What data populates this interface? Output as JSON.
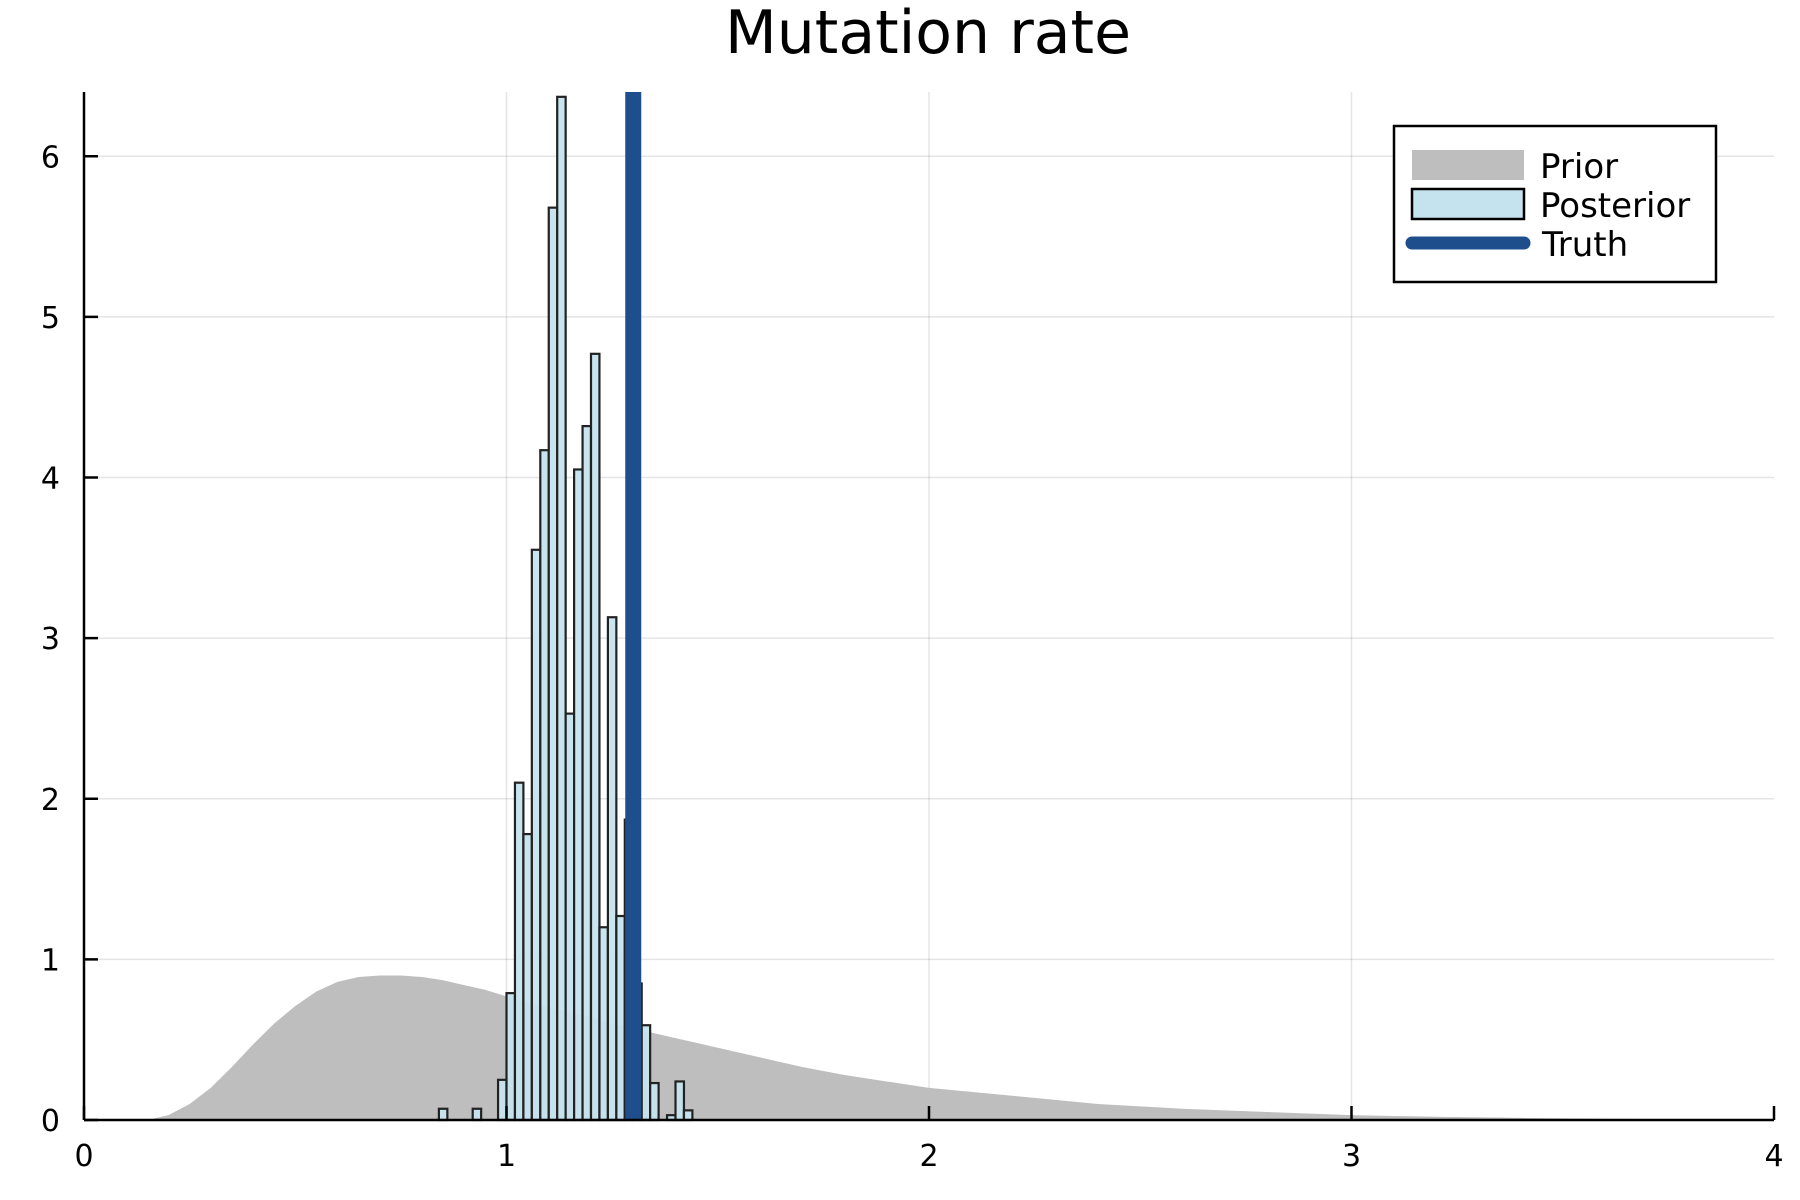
{
  "chart_data": {
    "type": "histogram",
    "title": "Mutation rate",
    "xlabel": "",
    "ylabel": "",
    "xlim": [
      0,
      4
    ],
    "ylim": [
      0,
      6.4
    ],
    "x_ticks": [
      "0",
      "1",
      "2",
      "3",
      "4"
    ],
    "y_ticks": [
      "0",
      "1",
      "2",
      "3",
      "4",
      "5",
      "6"
    ],
    "grid": true,
    "legend_position": "top-right",
    "series": [
      {
        "name": "Prior",
        "kind": "density-area",
        "color": "#bebebe",
        "x": [
          0.0,
          0.15,
          0.2,
          0.25,
          0.3,
          0.35,
          0.4,
          0.45,
          0.5,
          0.55,
          0.6,
          0.65,
          0.7,
          0.75,
          0.8,
          0.85,
          0.9,
          0.95,
          1.0,
          1.05,
          1.1,
          1.15,
          1.2,
          1.25,
          1.3,
          1.35,
          1.4,
          1.45,
          1.5,
          1.6,
          1.7,
          1.8,
          1.9,
          2.0,
          2.2,
          2.4,
          2.6,
          2.8,
          3.0,
          3.2,
          3.4,
          3.6,
          3.8,
          4.0
        ],
        "y": [
          0.0,
          0.0,
          0.03,
          0.1,
          0.2,
          0.33,
          0.47,
          0.6,
          0.71,
          0.8,
          0.86,
          0.89,
          0.9,
          0.9,
          0.89,
          0.87,
          0.84,
          0.81,
          0.77,
          0.73,
          0.7,
          0.67,
          0.64,
          0.6,
          0.57,
          0.54,
          0.51,
          0.48,
          0.45,
          0.39,
          0.33,
          0.28,
          0.24,
          0.2,
          0.15,
          0.1,
          0.07,
          0.05,
          0.03,
          0.02,
          0.013,
          0.008,
          0.005,
          0.003
        ]
      },
      {
        "name": "Posterior",
        "kind": "histogram",
        "color": "#c4e3ee",
        "edge_color": "#222222",
        "bin_width": 0.02,
        "bin_start": [
          0.84,
          0.86,
          0.88,
          0.9,
          0.92,
          0.94,
          0.96,
          0.98,
          1.0,
          1.02,
          1.04,
          1.06,
          1.08,
          1.1,
          1.12,
          1.14,
          1.16,
          1.18,
          1.2,
          1.22,
          1.24,
          1.26,
          1.28,
          1.3,
          1.32,
          1.34,
          1.36,
          1.38,
          1.4,
          1.42
        ],
        "values": [
          0.07,
          0.0,
          0.0,
          0.0,
          0.07,
          0.0,
          0.0,
          0.25,
          0.79,
          2.1,
          1.78,
          3.55,
          4.17,
          5.68,
          6.37,
          2.53,
          4.05,
          4.32,
          4.77,
          1.2,
          3.13,
          1.27,
          1.87,
          0.85,
          0.59,
          0.23,
          0.0,
          0.03,
          0.24,
          0.06
        ]
      },
      {
        "name": "Truth",
        "kind": "vline",
        "color": "#1e4f8c",
        "x": 1.3
      }
    ]
  }
}
